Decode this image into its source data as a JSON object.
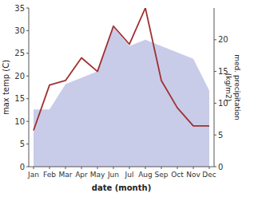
{
  "chart_data": {
    "type": "line",
    "categories": [
      "Jan",
      "Feb",
      "Mar",
      "Apr",
      "May",
      "Jun",
      "Jul",
      "Aug",
      "Sep",
      "Oct",
      "Nov",
      "Dec"
    ],
    "xlabel": "date (month)",
    "ylabel": "max temp (C)",
    "y2label": "med. precipitation\n(kg/m2)",
    "ylim": [
      0,
      35
    ],
    "yticks": [
      0,
      5,
      10,
      15,
      20,
      25,
      30,
      35
    ],
    "y2lim": [
      0,
      25
    ],
    "y2ticks": [
      0,
      5,
      10,
      15,
      20
    ],
    "grid": false,
    "series": [
      {
        "type": "area",
        "axis": "y2",
        "color": "#c8cce8",
        "values": [
          9,
          9,
          13,
          14,
          15,
          22,
          19,
          20,
          19,
          18,
          17,
          12
        ]
      },
      {
        "type": "line",
        "color": "#a03030",
        "values": [
          8,
          18,
          19,
          24,
          21,
          31,
          27,
          35,
          19,
          13,
          9,
          9
        ]
      }
    ]
  }
}
